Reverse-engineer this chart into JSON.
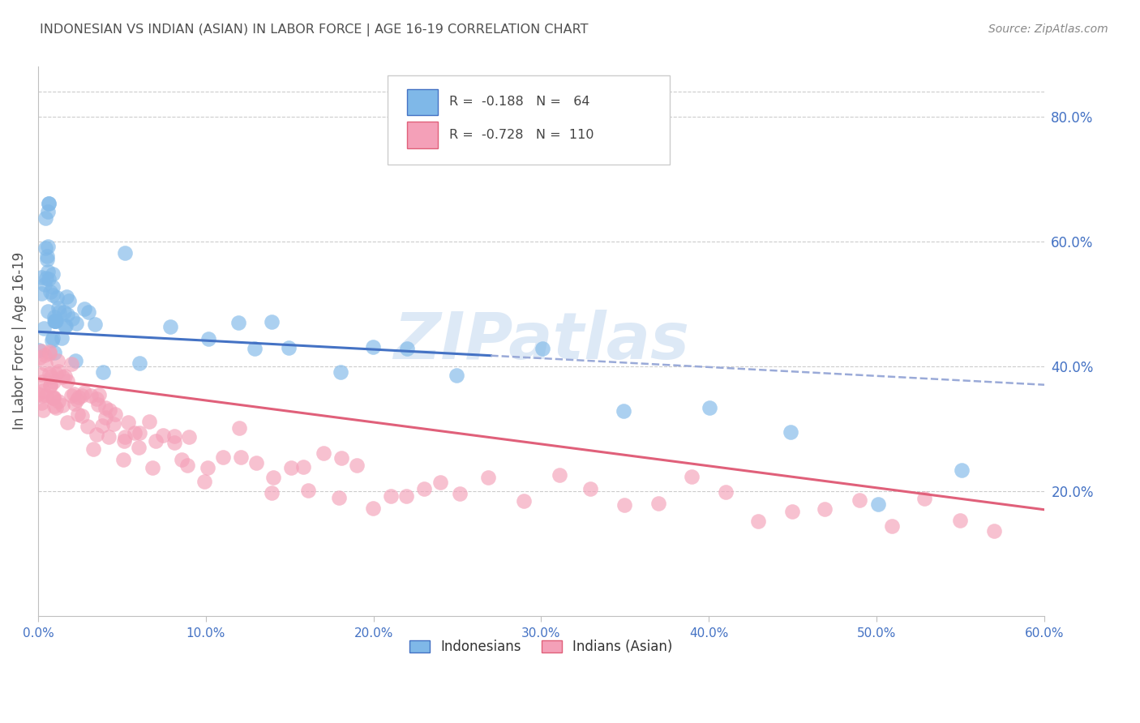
{
  "title": "INDONESIAN VS INDIAN (ASIAN) IN LABOR FORCE | AGE 16-19 CORRELATION CHART",
  "source": "Source: ZipAtlas.com",
  "ylabel": "In Labor Force | Age 16-19",
  "legend_label1": "Indonesians",
  "legend_label2": "Indians (Asian)",
  "r1": "-0.188",
  "n1": "64",
  "r2": "-0.728",
  "n2": "110",
  "watermark": "ZIPatlas",
  "blue_scatter_color": "#7fb8e8",
  "pink_scatter_color": "#f4a0b8",
  "blue_line_color": "#4472c4",
  "pink_line_color": "#e0607a",
  "axis_tick_color": "#4472c4",
  "title_color": "#505050",
  "source_color": "#888888",
  "background_color": "#ffffff",
  "grid_color": "#cccccc",
  "xlim": [
    0.0,
    0.6
  ],
  "ylim": [
    0.0,
    0.88
  ],
  "x_ticks": [
    0.0,
    0.1,
    0.2,
    0.3,
    0.4,
    0.5,
    0.6
  ],
  "x_tick_labels": [
    "0.0%",
    "10.0%",
    "20.0%",
    "30.0%",
    "40.0%",
    "50.0%",
    "60.0%"
  ],
  "y_ticks_right": [
    0.2,
    0.4,
    0.6,
    0.8
  ],
  "y_tick_labels_right": [
    "20.0%",
    "40.0%",
    "60.0%",
    "80.0%"
  ],
  "indo_x": [
    0.001,
    0.001,
    0.002,
    0.002,
    0.003,
    0.003,
    0.004,
    0.004,
    0.005,
    0.005,
    0.005,
    0.006,
    0.006,
    0.006,
    0.007,
    0.007,
    0.007,
    0.008,
    0.008,
    0.008,
    0.009,
    0.009,
    0.009,
    0.01,
    0.01,
    0.01,
    0.01,
    0.011,
    0.011,
    0.012,
    0.012,
    0.013,
    0.013,
    0.014,
    0.015,
    0.015,
    0.016,
    0.017,
    0.018,
    0.02,
    0.022,
    0.025,
    0.028,
    0.03,
    0.035,
    0.04,
    0.05,
    0.06,
    0.08,
    0.1,
    0.12,
    0.13,
    0.14,
    0.15,
    0.18,
    0.2,
    0.22,
    0.25,
    0.3,
    0.35,
    0.4,
    0.45,
    0.5,
    0.55
  ],
  "indo_y": [
    0.44,
    0.5,
    0.55,
    0.48,
    0.62,
    0.57,
    0.6,
    0.56,
    0.64,
    0.6,
    0.53,
    0.62,
    0.58,
    0.55,
    0.58,
    0.55,
    0.52,
    0.55,
    0.52,
    0.49,
    0.51,
    0.48,
    0.46,
    0.5,
    0.48,
    0.45,
    0.44,
    0.47,
    0.44,
    0.48,
    0.45,
    0.47,
    0.44,
    0.46,
    0.48,
    0.44,
    0.47,
    0.46,
    0.45,
    0.44,
    0.44,
    0.44,
    0.44,
    0.47,
    0.44,
    0.43,
    0.57,
    0.46,
    0.44,
    0.44,
    0.46,
    0.45,
    0.46,
    0.43,
    0.43,
    0.42,
    0.43,
    0.42,
    0.4,
    0.36,
    0.35,
    0.34,
    0.22,
    0.22
  ],
  "indian_x": [
    0.001,
    0.001,
    0.002,
    0.002,
    0.002,
    0.003,
    0.003,
    0.003,
    0.004,
    0.004,
    0.004,
    0.005,
    0.005,
    0.005,
    0.006,
    0.006,
    0.007,
    0.007,
    0.008,
    0.008,
    0.009,
    0.009,
    0.01,
    0.01,
    0.011,
    0.011,
    0.012,
    0.013,
    0.014,
    0.015,
    0.016,
    0.017,
    0.018,
    0.019,
    0.02,
    0.021,
    0.022,
    0.023,
    0.024,
    0.025,
    0.026,
    0.027,
    0.028,
    0.03,
    0.031,
    0.032,
    0.033,
    0.034,
    0.035,
    0.036,
    0.038,
    0.04,
    0.042,
    0.044,
    0.046,
    0.05,
    0.052,
    0.055,
    0.058,
    0.06,
    0.065,
    0.07,
    0.075,
    0.08,
    0.085,
    0.09,
    0.1,
    0.11,
    0.12,
    0.13,
    0.14,
    0.15,
    0.16,
    0.17,
    0.18,
    0.19,
    0.2,
    0.21,
    0.22,
    0.23,
    0.24,
    0.25,
    0.27,
    0.29,
    0.31,
    0.33,
    0.35,
    0.37,
    0.39,
    0.41,
    0.43,
    0.45,
    0.47,
    0.49,
    0.51,
    0.53,
    0.55,
    0.57,
    0.04,
    0.045,
    0.05,
    0.06,
    0.07,
    0.08,
    0.09,
    0.1,
    0.12,
    0.14,
    0.16,
    0.18
  ],
  "indian_y": [
    0.42,
    0.37,
    0.4,
    0.37,
    0.35,
    0.4,
    0.38,
    0.36,
    0.4,
    0.38,
    0.36,
    0.4,
    0.38,
    0.36,
    0.4,
    0.38,
    0.39,
    0.37,
    0.38,
    0.36,
    0.38,
    0.36,
    0.38,
    0.36,
    0.37,
    0.35,
    0.37,
    0.36,
    0.37,
    0.35,
    0.36,
    0.35,
    0.36,
    0.35,
    0.35,
    0.34,
    0.35,
    0.34,
    0.34,
    0.34,
    0.33,
    0.34,
    0.33,
    0.33,
    0.32,
    0.33,
    0.32,
    0.33,
    0.32,
    0.31,
    0.31,
    0.32,
    0.31,
    0.3,
    0.31,
    0.3,
    0.29,
    0.29,
    0.28,
    0.29,
    0.28,
    0.27,
    0.28,
    0.27,
    0.26,
    0.27,
    0.26,
    0.25,
    0.26,
    0.25,
    0.24,
    0.25,
    0.24,
    0.23,
    0.24,
    0.23,
    0.22,
    0.23,
    0.22,
    0.21,
    0.22,
    0.21,
    0.2,
    0.21,
    0.2,
    0.19,
    0.2,
    0.19,
    0.18,
    0.19,
    0.18,
    0.17,
    0.18,
    0.17,
    0.16,
    0.17,
    0.16,
    0.15,
    0.31,
    0.3,
    0.29,
    0.29,
    0.28,
    0.27,
    0.26,
    0.25,
    0.24,
    0.23,
    0.22,
    0.21
  ]
}
